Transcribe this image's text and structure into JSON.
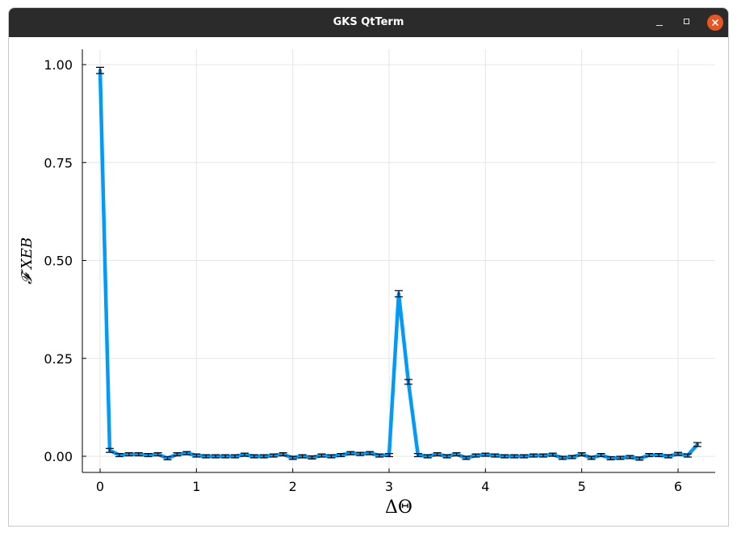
{
  "window": {
    "title": "GKS QtTerm"
  },
  "colors": {
    "titlebar": "#2b2b2b",
    "close_button": "#e95420",
    "series_line": "#009af9",
    "grid": "#e5e5e5",
    "axis": "#000000"
  },
  "chart_data": {
    "type": "line",
    "title": "",
    "xlabel": "ΔΘ",
    "ylabel": "𝓕 XEB",
    "xlim": [
      -0.1,
      6.4
    ],
    "ylim": [
      -0.04,
      1.03
    ],
    "xticks": [
      0,
      1,
      2,
      3,
      4,
      5,
      6
    ],
    "yticks": [
      0.0,
      0.25,
      0.5,
      0.75,
      1.0
    ],
    "xtick_labels": [
      "0",
      "1",
      "2",
      "3",
      "4",
      "5",
      "6"
    ],
    "ytick_labels": [
      "0.00",
      "0.25",
      "0.50",
      "0.75",
      "1.00"
    ],
    "grid": true,
    "legend": "none",
    "series": [
      {
        "x": [
          0.0,
          0.1,
          0.2,
          0.3,
          0.4,
          0.5,
          0.6,
          0.7,
          0.8,
          0.9,
          1.0,
          1.1,
          1.2,
          1.3,
          1.4,
          1.5,
          1.6,
          1.7,
          1.8,
          1.9,
          2.0,
          2.1,
          2.2,
          2.3,
          2.4,
          2.5,
          2.6,
          2.7,
          2.8,
          2.9,
          3.0,
          3.1,
          3.2,
          3.3,
          3.4,
          3.5,
          3.6,
          3.7,
          3.8,
          3.9,
          4.0,
          4.1,
          4.2,
          4.3,
          4.4,
          4.5,
          4.6,
          4.7,
          4.8,
          4.9,
          5.0,
          5.1,
          5.2,
          5.3,
          5.4,
          5.5,
          5.6,
          5.7,
          5.8,
          5.9,
          6.0,
          6.1,
          6.2
        ],
        "y": [
          0.985,
          0.015,
          0.003,
          0.005,
          0.005,
          0.003,
          0.005,
          -0.005,
          0.005,
          0.008,
          0.002,
          0.0,
          0.0,
          0.0,
          0.0,
          0.004,
          0.0,
          0.0,
          0.002,
          0.005,
          -0.004,
          0.0,
          -0.003,
          0.002,
          0.0,
          0.003,
          0.008,
          0.006,
          0.008,
          0.002,
          0.003,
          0.415,
          0.19,
          0.003,
          0.0,
          0.005,
          0.0,
          0.005,
          -0.004,
          0.002,
          0.004,
          0.002,
          0.0,
          0.0,
          0.0,
          0.002,
          0.002,
          0.004,
          -0.004,
          -0.002,
          0.005,
          -0.004,
          0.003,
          -0.005,
          -0.004,
          -0.002,
          -0.006,
          0.003,
          0.003,
          0.0,
          0.006,
          0.002,
          0.03
        ],
        "err": [
          0.008,
          0.005,
          0.004,
          0.004,
          0.004,
          0.004,
          0.004,
          0.004,
          0.004,
          0.004,
          0.004,
          0.004,
          0.004,
          0.004,
          0.004,
          0.004,
          0.004,
          0.004,
          0.004,
          0.004,
          0.004,
          0.004,
          0.004,
          0.004,
          0.004,
          0.004,
          0.004,
          0.004,
          0.004,
          0.004,
          0.004,
          0.008,
          0.006,
          0.004,
          0.004,
          0.004,
          0.004,
          0.004,
          0.004,
          0.004,
          0.004,
          0.004,
          0.004,
          0.004,
          0.004,
          0.004,
          0.004,
          0.004,
          0.004,
          0.004,
          0.004,
          0.004,
          0.004,
          0.004,
          0.004,
          0.004,
          0.004,
          0.004,
          0.004,
          0.004,
          0.004,
          0.004,
          0.005
        ]
      }
    ]
  }
}
